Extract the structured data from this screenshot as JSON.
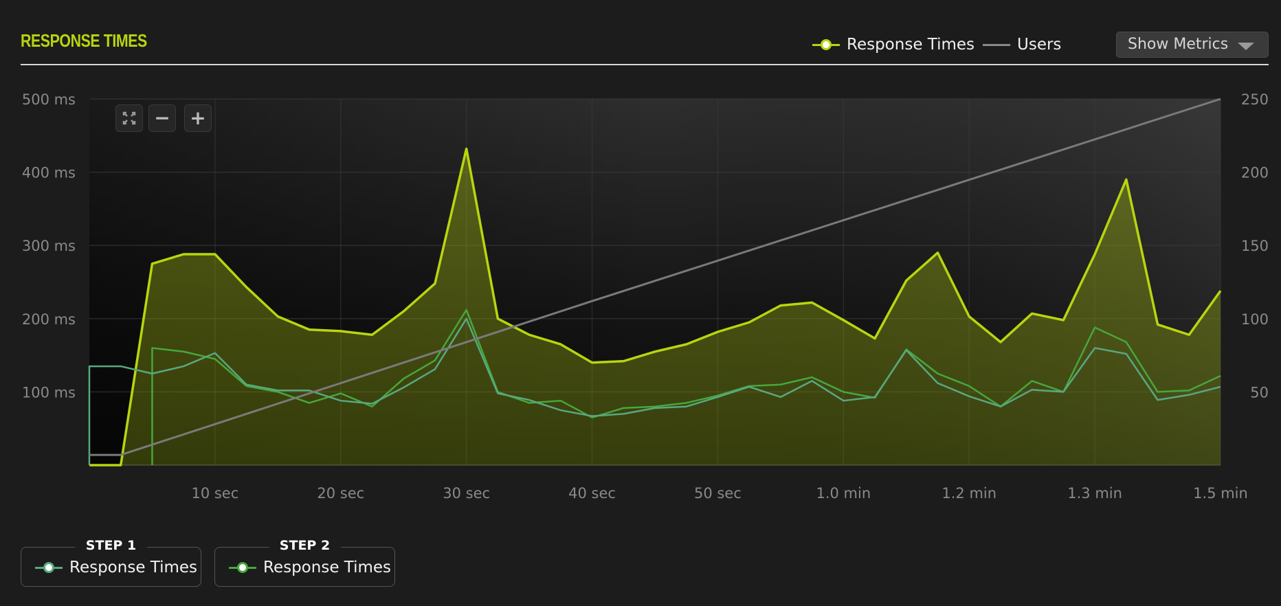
{
  "header": {
    "title": "RESPONSE TIMES",
    "legend": [
      {
        "label": "Response Times",
        "color": "#b9d50f",
        "icon": "line-dot-icon"
      },
      {
        "label": "Users",
        "color": "#8a8a8a",
        "icon": "line-icon"
      }
    ],
    "show_metrics_label": "Show Metrics"
  },
  "zoom_controls": {
    "fit": "fit-screen-icon",
    "zoom_out": "−",
    "zoom_in": "+"
  },
  "steps": [
    {
      "label": "STEP 1",
      "series_label": "Response Times",
      "color": "#58a880"
    },
    {
      "label": "STEP 2",
      "series_label": "Response Times",
      "color": "#46a83c"
    }
  ],
  "chart_data": {
    "type": "area",
    "x_ticks": [
      {
        "value": 10,
        "label": "10 sec"
      },
      {
        "value": 20,
        "label": "20 sec"
      },
      {
        "value": 30,
        "label": "30 sec"
      },
      {
        "value": 40,
        "label": "40 sec"
      },
      {
        "value": 50,
        "label": "50 sec"
      },
      {
        "value": 60,
        "label": "1.0 min"
      },
      {
        "value": 70,
        "label": "1.2 min"
      },
      {
        "value": 80,
        "label": "1.3 min"
      },
      {
        "value": 90,
        "label": "1.5 min"
      }
    ],
    "xlim": [
      0,
      90
    ],
    "y_left": {
      "ticks": [
        100,
        200,
        300,
        400,
        500
      ],
      "tick_labels": [
        "100 ms",
        "200 ms",
        "300 ms",
        "400 ms",
        "500 ms"
      ],
      "lim": [
        0,
        500
      ]
    },
    "y_right": {
      "ticks": [
        50,
        100,
        150,
        200,
        250
      ],
      "tick_labels": [
        "50",
        "100",
        "150",
        "200",
        "250"
      ],
      "lim": [
        0,
        250
      ]
    },
    "grid": true,
    "series": [
      {
        "name": "Response Times",
        "axis": "left",
        "color": "#b9d50f",
        "fill": true,
        "x": [
          0,
          2.5,
          5,
          7.5,
          10,
          12.5,
          15,
          17.5,
          20,
          22.5,
          25,
          27.5,
          30,
          32.5,
          35,
          37.5,
          40,
          42.5,
          45,
          47.5,
          50,
          52.5,
          55,
          57.5,
          60,
          62.5,
          65,
          67.5,
          70,
          72.5,
          75,
          77.5,
          80,
          82.5,
          85,
          87.5,
          90
        ],
        "y": [
          0,
          0,
          275,
          288,
          288,
          243,
          203,
          185,
          183,
          178,
          210,
          248,
          432,
          200,
          178,
          165,
          140,
          142,
          155,
          165,
          182,
          195,
          218,
          222,
          198,
          173,
          252,
          290,
          203,
          168,
          207,
          198,
          288,
          390,
          192,
          178,
          238
        ]
      },
      {
        "name": "Response Times",
        "axis": "left",
        "step": "STEP 2",
        "color": "#46a83c",
        "fill": false,
        "x": [
          5,
          7.5,
          10,
          12.5,
          15,
          17.5,
          20,
          22.5,
          25,
          27.5,
          30,
          32.5,
          35,
          37.5,
          40,
          42.5,
          45,
          47.5,
          50,
          52.5,
          55,
          57.5,
          60,
          62.5,
          65,
          67.5,
          70,
          72.5,
          75,
          77.5,
          80,
          82.5,
          85,
          87.5,
          90
        ],
        "y": [
          160,
          155,
          145,
          108,
          100,
          85,
          98,
          80,
          118,
          143,
          212,
          100,
          85,
          88,
          65,
          78,
          80,
          85,
          95,
          108,
          110,
          120,
          100,
          92,
          158,
          125,
          108,
          80,
          115,
          100,
          188,
          168,
          100,
          102,
          122
        ]
      },
      {
        "name": "Response Times",
        "axis": "left",
        "step": "STEP 1",
        "color": "#58a880",
        "fill": false,
        "x": [
          0,
          2.5,
          5,
          7.5,
          10,
          12.5,
          15,
          17.5,
          20,
          22.5,
          25,
          27.5,
          30,
          32.5,
          35,
          37.5,
          40,
          42.5,
          45,
          47.5,
          50,
          52.5,
          55,
          57.5,
          60,
          62.5,
          65,
          67.5,
          70,
          72.5,
          75,
          77.5,
          80,
          82.5,
          85,
          87.5,
          90
        ],
        "y": [
          135,
          135,
          125,
          135,
          153,
          110,
          102,
          102,
          88,
          84,
          106,
          131,
          200,
          98,
          89,
          75,
          67,
          70,
          78,
          80,
          93,
          107,
          93,
          115,
          88,
          93,
          157,
          112,
          94,
          80,
          103,
          100,
          160,
          152,
          89,
          96,
          107
        ]
      },
      {
        "name": "Users",
        "axis": "right",
        "color": "#7a7a7a",
        "fill": false,
        "x": [
          0,
          2.5,
          40,
          90
        ],
        "y": [
          7,
          7,
          112,
          250
        ]
      }
    ]
  }
}
